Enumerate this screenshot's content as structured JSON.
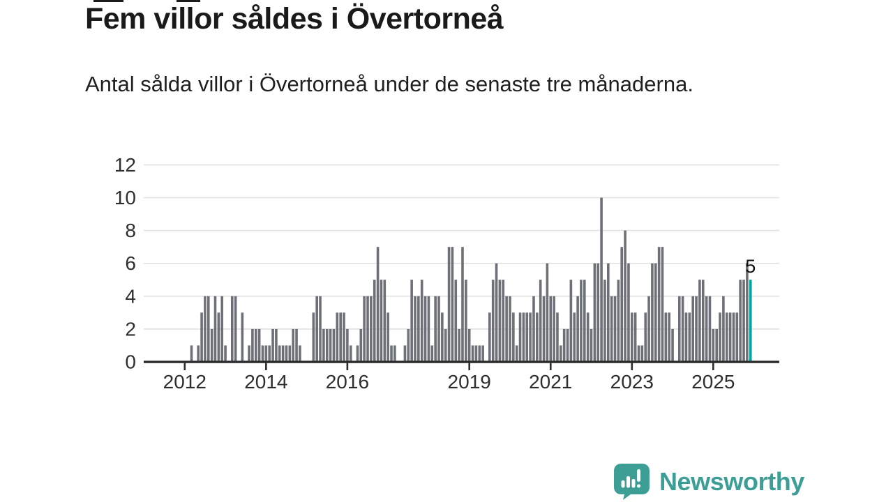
{
  "header": {
    "title": "Fem villor såldes i Övertorneå",
    "subtitle": "Antal sålda villor i Övertorneå under de senaste tre månaderna."
  },
  "chart_data": {
    "type": "bar",
    "title": "Fem villor såldes i Övertorneå",
    "subtitle": "Antal sålda villor i Övertorneå under de senaste tre månaderna.",
    "x_start_year": 2012,
    "x_unit": "month",
    "x_tick_labels": [
      "2012",
      "2014",
      "2016",
      "2019",
      "2021",
      "2023",
      "2025"
    ],
    "y_ticks": [
      0,
      2,
      4,
      6,
      8,
      10,
      12
    ],
    "ylim": [
      0,
      12
    ],
    "grid": true,
    "legend": false,
    "values": [
      0,
      0,
      1,
      0,
      1,
      3,
      4,
      4,
      2,
      4,
      3,
      4,
      1,
      0,
      4,
      4,
      0,
      3,
      0,
      1,
      2,
      2,
      2,
      1,
      1,
      1,
      2,
      2,
      1,
      1,
      1,
      1,
      2,
      2,
      1,
      0,
      0,
      0,
      3,
      4,
      4,
      2,
      2,
      2,
      2,
      3,
      3,
      3,
      2,
      1,
      0,
      1,
      2,
      4,
      4,
      4,
      5,
      7,
      5,
      5,
      3,
      1,
      1,
      0,
      0,
      1,
      2,
      5,
      4,
      4,
      5,
      4,
      4,
      1,
      4,
      4,
      3,
      2,
      7,
      7,
      5,
      2,
      7,
      5,
      2,
      1,
      1,
      1,
      1,
      0,
      3,
      5,
      6,
      5,
      5,
      4,
      4,
      3,
      1,
      3,
      3,
      3,
      3,
      4,
      3,
      5,
      4,
      6,
      4,
      4,
      3,
      1,
      2,
      2,
      5,
      3,
      4,
      5,
      5,
      3,
      2,
      6,
      6,
      10,
      5,
      6,
      4,
      4,
      5,
      7,
      8,
      6,
      3,
      3,
      1,
      1,
      3,
      4,
      6,
      6,
      7,
      7,
      3,
      3,
      2,
      0,
      4,
      4,
      3,
      3,
      4,
      4,
      5,
      5,
      4,
      4,
      2,
      2,
      3,
      4,
      3,
      3,
      3,
      3,
      5,
      5,
      6,
      5
    ],
    "highlight": {
      "index": 167,
      "value": 5,
      "label": "5"
    },
    "colors": {
      "bar": "#6d7076",
      "highlight": "#00a49c",
      "grid": "#e1e1e1",
      "axis": "#2d2d2d",
      "tick_text": "#2e2e2e",
      "annotation_text": "#111111"
    }
  },
  "footer": {
    "brand": "Newsworthy",
    "brand_color": "#3d9e96",
    "logo_icon": "newsworthy-speech-bubble-chart-icon"
  }
}
